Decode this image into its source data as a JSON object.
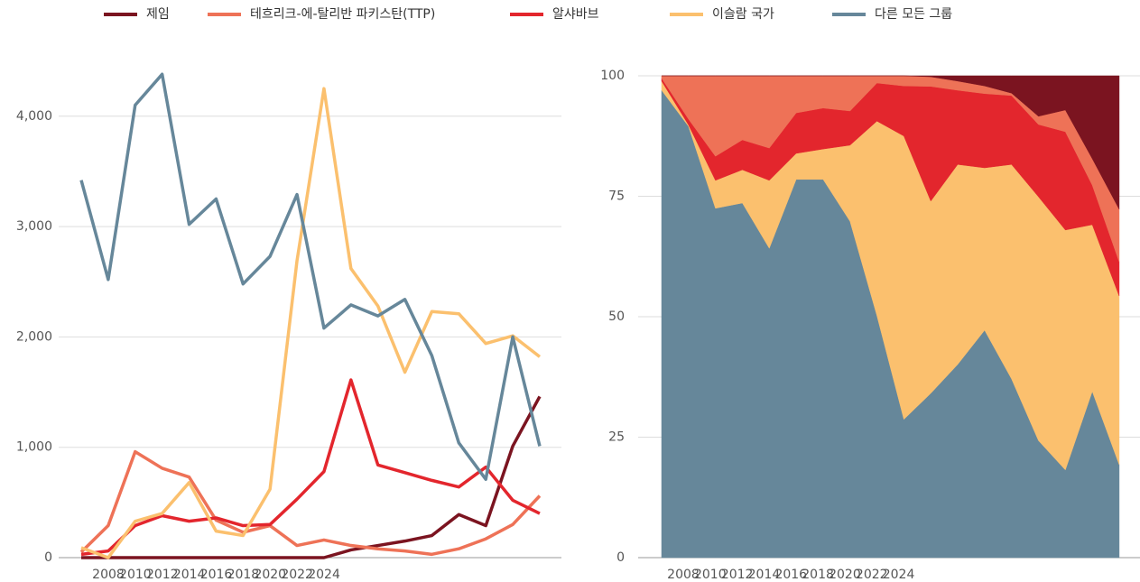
{
  "chart_data": [
    {
      "type": "line",
      "xtick_labels": [
        "2008",
        "2010",
        "2012",
        "2014",
        "2016",
        "2018",
        "2020",
        "2022",
        "2024"
      ],
      "ylim": [
        0,
        4366
      ],
      "yticks": [
        0,
        {
          "value": 1000,
          "label": "1,000"
        },
        {
          "value": 2000,
          "label": "2,000"
        },
        {
          "value": 3000,
          "label": "3,000"
        },
        {
          "value": 4000,
          "label": "4,000"
        }
      ],
      "grid": true,
      "series": [
        {
          "name": "제임",
          "color": "#7b1420",
          "values": [
            0,
            0,
            0,
            0,
            0,
            0,
            0,
            0,
            0,
            0,
            70,
            110,
            150,
            200,
            390,
            290,
            1010,
            1460
          ]
        },
        {
          "name": "테흐리크-에-탈리반 파키스탄(TTP)",
          "color": "#ee7257",
          "values": [
            50,
            290,
            960,
            810,
            730,
            340,
            230,
            290,
            110,
            160,
            110,
            80,
            60,
            30,
            80,
            170,
            300,
            560
          ]
        },
        {
          "name": "알샤바브",
          "color": "#e3262d",
          "values": [
            30,
            60,
            290,
            380,
            330,
            360,
            290,
            300,
            530,
            780,
            1610,
            840,
            770,
            700,
            640,
            820,
            520,
            400
          ]
        },
        {
          "name": "이슬람 국가",
          "color": "#fbc06e",
          "values": [
            90,
            0,
            330,
            400,
            680,
            240,
            200,
            620,
            2690,
            4250,
            2620,
            2280,
            1680,
            2230,
            2210,
            1940,
            2010,
            1820
          ]
        },
        {
          "name": "다른 모든 그룹",
          "color": "#66879a",
          "values": [
            3420,
            2520,
            4100,
            4380,
            3020,
            3250,
            2480,
            2730,
            3290,
            2080,
            2290,
            2190,
            2340,
            1830,
            1040,
            710,
            2000,
            1010
          ]
        }
      ]
    },
    {
      "type": "stacked_area",
      "xtick_labels": [
        "2008",
        "2010",
        "2012",
        "2014",
        "2016",
        "2018",
        "2020",
        "2022",
        "2024"
      ],
      "ylim": [
        0,
        100
      ],
      "yticks": [
        0,
        25,
        50,
        75,
        100
      ],
      "grid": true,
      "series": [
        {
          "color": "#66879a",
          "values": [
            97,
            89.5,
            72.5,
            73.6,
            64.2,
            78.5,
            78.5,
            69.8,
            50.2,
            28.7,
            34.1,
            40.1,
            47.2,
            37.1,
            24.3,
            18.2,
            34.5,
            19.3
          ]
        },
        {
          "color": "#fbc06e",
          "values": [
            1.9,
            0.3,
            5.8,
            6.9,
            14.1,
            5.4,
            6.3,
            15.8,
            40.4,
            58.8,
            39.9,
            41.5,
            33.7,
            44.5,
            50.6,
            49.8,
            34.6,
            35
          ]
        },
        {
          "color": "#e3262d",
          "values": [
            0.6,
            1.2,
            5,
            6.2,
            6.7,
            8.4,
            8.5,
            7.1,
            7.9,
            10.4,
            23.8,
            15.4,
            15.4,
            14.3,
            15,
            20.4,
            8.2,
            7.1
          ]
        },
        {
          "color": "#ee7257",
          "values": [
            0.5,
            9,
            16.7,
            13.3,
            15,
            7.7,
            6.7,
            7.3,
            1.5,
            2.1,
            2,
            1.9,
            1.6,
            0.5,
            1.7,
            4.5,
            5.5,
            10.9
          ]
        },
        {
          "color": "#7b1420",
          "values": [
            0,
            0,
            0,
            0,
            0,
            0,
            0,
            0,
            0,
            0,
            0.2,
            1.1,
            2.1,
            3.6,
            8.4,
            7.1,
            17.2,
            27.7
          ]
        }
      ]
    }
  ]
}
